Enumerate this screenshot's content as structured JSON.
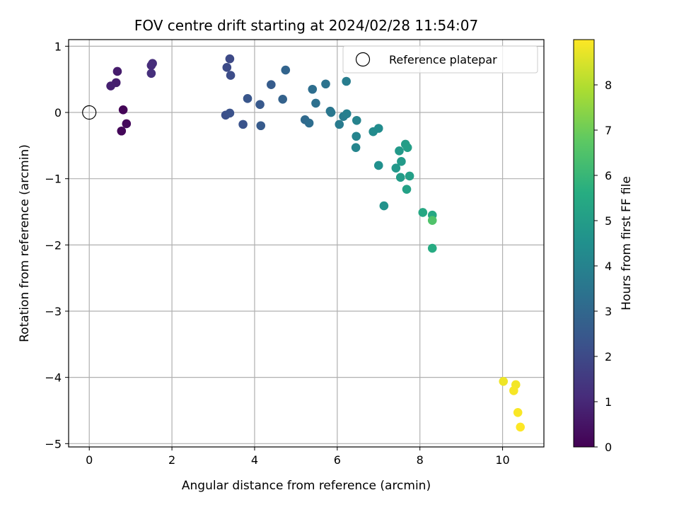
{
  "chart_data": {
    "type": "scatter",
    "title": "FOV centre drift starting at 2024/02/28 11:54:07",
    "xlabel": "Angular distance from reference (arcmin)",
    "ylabel": "Rotation from reference (arcmin)",
    "colorbar_label": "Hours from first FF file",
    "xlim": [
      -0.5,
      11.0
    ],
    "ylim": [
      -5.05,
      1.1
    ],
    "x_ticks": [
      0,
      2,
      4,
      6,
      8,
      10
    ],
    "x_tick_labels": [
      "0",
      "2",
      "4",
      "6",
      "8",
      "10"
    ],
    "y_ticks": [
      1,
      0,
      -1,
      -2,
      -3,
      -4,
      -5
    ],
    "y_tick_labels": [
      "1",
      "0",
      "−1",
      "−2",
      "−3",
      "−4",
      "−5"
    ],
    "colorbar_range": [
      0,
      9
    ],
    "colorbar_ticks": [
      0,
      1,
      2,
      3,
      4,
      5,
      6,
      7,
      8
    ],
    "colorbar_tick_labels": [
      "0",
      "1",
      "2",
      "3",
      "4",
      "5",
      "6",
      "7",
      "8"
    ],
    "colormap": "viridis",
    "grid": true,
    "legend": {
      "placement": "top-right",
      "label": "Reference platepar"
    },
    "reference_point": {
      "x": 0,
      "y": 0
    },
    "points": [
      {
        "x": 0.82,
        "y": 0.04,
        "hours": 0.1
      },
      {
        "x": 0.78,
        "y": -0.28,
        "hours": 0.15
      },
      {
        "x": 0.9,
        "y": -0.17,
        "hours": 0.2
      },
      {
        "x": 0.68,
        "y": 0.62,
        "hours": 0.7
      },
      {
        "x": 0.65,
        "y": 0.45,
        "hours": 0.75
      },
      {
        "x": 0.52,
        "y": 0.4,
        "hours": 0.8
      },
      {
        "x": 1.5,
        "y": 0.71,
        "hours": 1.1
      },
      {
        "x": 1.53,
        "y": 0.74,
        "hours": 1.15
      },
      {
        "x": 1.5,
        "y": 0.59,
        "hours": 1.2
      },
      {
        "x": 3.4,
        "y": 0.81,
        "hours": 2.0
      },
      {
        "x": 3.33,
        "y": 0.68,
        "hours": 2.05
      },
      {
        "x": 3.42,
        "y": 0.56,
        "hours": 2.1
      },
      {
        "x": 3.3,
        "y": -0.04,
        "hours": 2.2
      },
      {
        "x": 3.4,
        "y": -0.01,
        "hours": 2.25
      },
      {
        "x": 3.72,
        "y": -0.18,
        "hours": 2.3
      },
      {
        "x": 3.83,
        "y": 0.21,
        "hours": 2.4
      },
      {
        "x": 4.13,
        "y": 0.12,
        "hours": 2.5
      },
      {
        "x": 4.15,
        "y": -0.2,
        "hours": 2.55
      },
      {
        "x": 4.4,
        "y": 0.42,
        "hours": 2.6
      },
      {
        "x": 4.68,
        "y": 0.2,
        "hours": 2.8
      },
      {
        "x": 4.75,
        "y": 0.64,
        "hours": 2.9
      },
      {
        "x": 5.22,
        "y": -0.11,
        "hours": 3.1
      },
      {
        "x": 5.32,
        "y": -0.16,
        "hours": 3.2
      },
      {
        "x": 5.4,
        "y": 0.35,
        "hours": 3.25
      },
      {
        "x": 5.48,
        "y": 0.14,
        "hours": 3.3
      },
      {
        "x": 5.72,
        "y": 0.43,
        "hours": 3.4
      },
      {
        "x": 5.83,
        "y": 0.02,
        "hours": 3.5
      },
      {
        "x": 5.85,
        "y": 0.0,
        "hours": 3.55
      },
      {
        "x": 6.05,
        "y": -0.18,
        "hours": 3.7
      },
      {
        "x": 6.15,
        "y": -0.06,
        "hours": 3.75
      },
      {
        "x": 6.22,
        "y": 0.47,
        "hours": 3.8
      },
      {
        "x": 6.23,
        "y": -0.02,
        "hours": 3.85
      },
      {
        "x": 6.47,
        "y": -0.12,
        "hours": 4.0
      },
      {
        "x": 6.46,
        "y": -0.36,
        "hours": 4.05
      },
      {
        "x": 6.45,
        "y": -0.53,
        "hours": 4.1
      },
      {
        "x": 6.87,
        "y": -0.29,
        "hours": 4.3
      },
      {
        "x": 7.0,
        "y": -0.24,
        "hours": 4.35
      },
      {
        "x": 7.0,
        "y": -0.8,
        "hours": 4.5
      },
      {
        "x": 7.13,
        "y": -1.41,
        "hours": 4.6
      },
      {
        "x": 7.42,
        "y": -0.84,
        "hours": 4.8
      },
      {
        "x": 7.5,
        "y": -0.58,
        "hours": 4.85
      },
      {
        "x": 7.55,
        "y": -0.74,
        "hours": 4.9
      },
      {
        "x": 7.53,
        "y": -0.98,
        "hours": 4.95
      },
      {
        "x": 7.65,
        "y": -0.48,
        "hours": 5.0
      },
      {
        "x": 7.7,
        "y": -0.53,
        "hours": 5.05
      },
      {
        "x": 7.75,
        "y": -0.96,
        "hours": 5.1
      },
      {
        "x": 7.68,
        "y": -1.16,
        "hours": 5.15
      },
      {
        "x": 8.07,
        "y": -1.51,
        "hours": 5.4
      },
      {
        "x": 8.3,
        "y": -1.55,
        "hours": 5.45
      },
      {
        "x": 8.3,
        "y": -2.05,
        "hours": 5.55
      },
      {
        "x": 8.3,
        "y": -1.63,
        "hours": 6.5
      },
      {
        "x": 10.02,
        "y": -4.06,
        "hours": 8.8
      },
      {
        "x": 10.32,
        "y": -4.11,
        "hours": 8.85
      },
      {
        "x": 10.27,
        "y": -4.2,
        "hours": 8.9
      },
      {
        "x": 10.37,
        "y": -4.53,
        "hours": 8.95
      },
      {
        "x": 10.43,
        "y": -4.75,
        "hours": 9.0
      }
    ]
  }
}
